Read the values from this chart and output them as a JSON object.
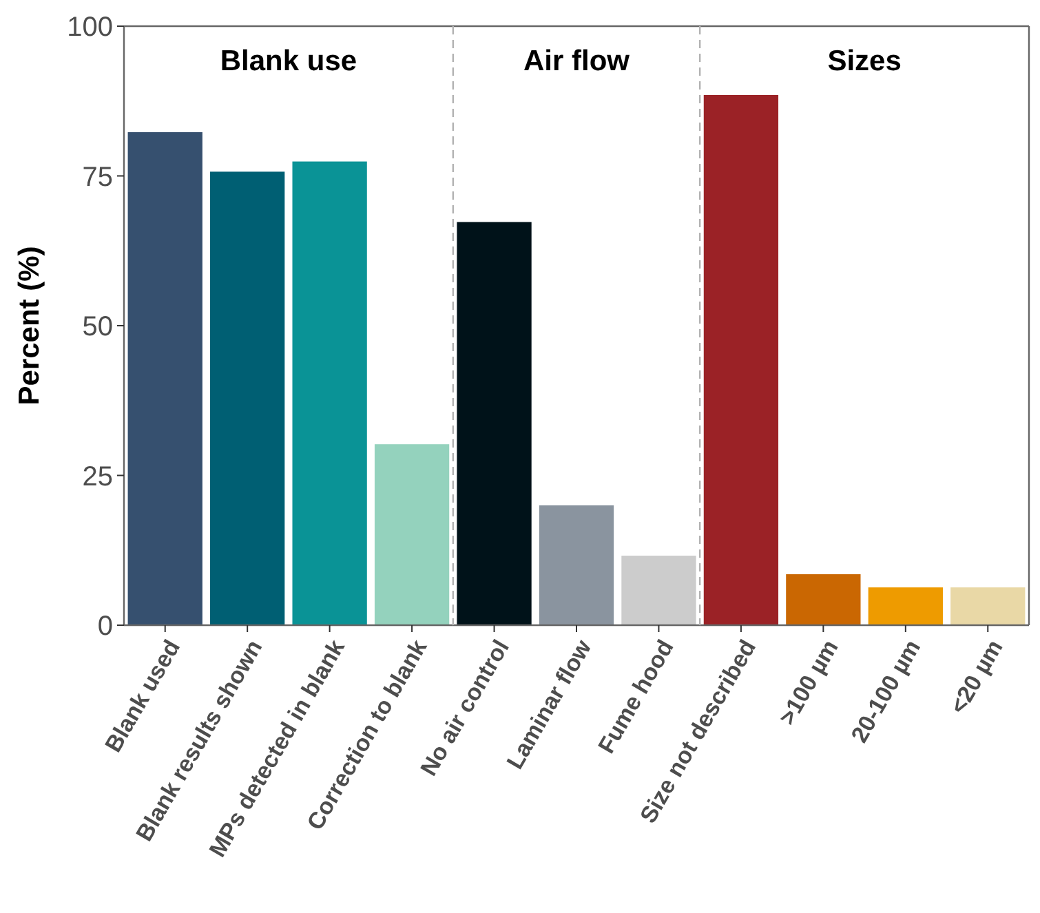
{
  "chart_data": [
    {
      "type": "bar",
      "title": "Blank use",
      "ylabel": "Percent (%)",
      "categories": [
        "Blank used",
        "Blank results shown",
        "MPs detected in blank",
        "Correction to blank"
      ],
      "values": [
        82.4,
        75.8,
        77.5,
        30.3
      ],
      "colors": [
        "#36506f",
        "#005f73",
        "#0a9396",
        "#94d2bd"
      ],
      "ylim": [
        0,
        100
      ],
      "yticks": [
        0,
        25,
        50,
        75,
        100
      ]
    },
    {
      "type": "bar",
      "title": "Air flow",
      "categories": [
        "No air control",
        "Laminar flow",
        "Fume hood"
      ],
      "values": [
        67.4,
        20.1,
        11.7
      ],
      "colors": [
        "#001219",
        "#8a949f",
        "#cccccc"
      ],
      "ylim": [
        0,
        100
      ],
      "tick_labels": "x"
    },
    {
      "type": "bar",
      "title": "Sizes",
      "categories": [
        "Size not described",
        ">100 µm",
        "20-100 µm",
        "<20 µm"
      ],
      "values": [
        88.6,
        8.6,
        6.4,
        6.4
      ],
      "colors": [
        "#9b2226",
        "#ca6702",
        "#ee9b00",
        "#e9d8a6"
      ],
      "ylim": [
        0,
        100
      ],
      "tick_labels": "x"
    }
  ]
}
